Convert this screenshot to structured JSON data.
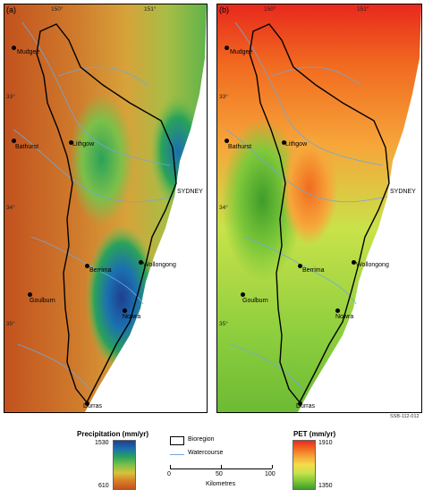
{
  "panels": {
    "a": {
      "label": "(a)"
    },
    "b": {
      "label": "(b)"
    }
  },
  "longitudes": {
    "lon150": "150°",
    "lon151": "151°"
  },
  "latitudes": {
    "lat33": "33°",
    "lat34": "34°",
    "lat35": "35°"
  },
  "places": {
    "mudgee": "Mudgee",
    "bathurst": "Bathurst",
    "lithgow": "Lithgow",
    "sydney": "SYDNEY",
    "berrima": "Berrima",
    "wollongong": "Wollongong",
    "goulburn": "Goulburn",
    "nowra": "Nowra",
    "durras": "Durras"
  },
  "figure_code": "SSB-112-012",
  "legend": {
    "precip_title": "Precipitation (mm/yr)",
    "precip_max": "1530",
    "precip_min": "610",
    "pet_title": "PET (mm/yr)",
    "pet_max": "1910",
    "pet_min": "1350",
    "bioregion": "Bioregion",
    "watercourse": "Watercourse",
    "scale_0": "0",
    "scale_50": "50",
    "scale_100": "100",
    "scale_unit": "Kilometres"
  },
  "colors": {
    "precip_high": "#1e3f8f",
    "precip_low": "#c2521e",
    "pet_high": "#e8291d",
    "pet_low": "#3f9d2a",
    "watercourse": "#6fa8dc",
    "bioregion": "#000000"
  }
}
